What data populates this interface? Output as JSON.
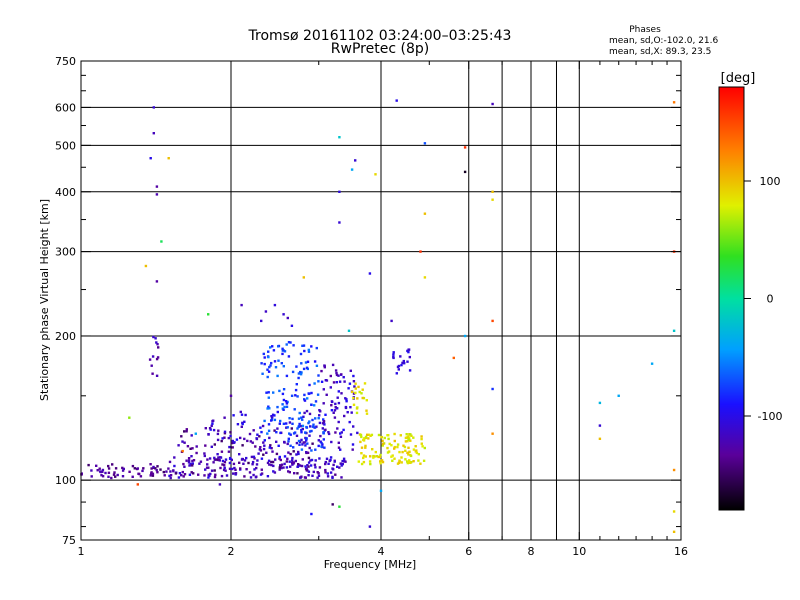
{
  "chart_data": {
    "type": "scatter",
    "title": "Tromsø 20161102 03:24:00–03:25:43",
    "subtitle": "RwPretec (8p)",
    "xlabel": "Frequency [MHz]",
    "ylabel": "Stationary phase Virtual Height [km]",
    "x_scale": "log",
    "y_scale": "log",
    "xlim": [
      1,
      16
    ],
    "ylim": [
      75,
      750
    ],
    "x_ticks": [
      1,
      2,
      4,
      6,
      8,
      10,
      16
    ],
    "y_ticks": [
      75,
      100,
      200,
      300,
      400,
      500,
      600,
      750
    ],
    "x_gridlines": [
      2,
      4,
      6,
      7,
      8,
      9,
      10
    ],
    "y_gridlines": [
      100,
      200,
      300,
      400,
      500,
      600
    ],
    "grid": true,
    "phases_box": {
      "title": "Phases",
      "line1": "mean, sd,O:-102.0, 21.6",
      "line2": "mean, sd,X: 89.3, 23.5"
    },
    "colorbar": {
      "unit": "[deg]",
      "range": [
        -180,
        180
      ],
      "ticks": [
        {
          "value": 100,
          "label": "100"
        },
        {
          "value": 0,
          "label": "0"
        },
        {
          "value": -100,
          "label": "-100"
        }
      ]
    },
    "bands": [
      {
        "f": [
          1.0,
          1.5
        ],
        "h": [
          101,
          108
        ],
        "n": 60,
        "phase": [
          -150,
          -120
        ]
      },
      {
        "f": [
          1.5,
          3.4
        ],
        "h": [
          101,
          112
        ],
        "n": 180,
        "phase": [
          -140,
          -100
        ]
      },
      {
        "f": [
          1.55,
          3.0
        ],
        "h": [
          103,
          130
        ],
        "n": 110,
        "phase": [
          -150,
          -110
        ]
      },
      {
        "f": [
          1.8,
          3.1
        ],
        "h": [
          110,
          140
        ],
        "n": 80,
        "phase": [
          -125,
          -90
        ]
      },
      {
        "f": [
          2.3,
          3.0
        ],
        "h": [
          125,
          195
        ],
        "n": 130,
        "phase": [
          -95,
          -55
        ]
      },
      {
        "f": [
          2.6,
          3.1
        ],
        "h": [
          115,
          135
        ],
        "n": 40,
        "phase": [
          -85,
          -60
        ]
      },
      {
        "f": [
          3.0,
          3.6
        ],
        "h": [
          115,
          170
        ],
        "n": 60,
        "phase": [
          -130,
          -90
        ]
      },
      {
        "f": [
          3.6,
          4.9
        ],
        "h": [
          108,
          125
        ],
        "n": 120,
        "phase": [
          70,
          100
        ]
      },
      {
        "f": [
          3.5,
          3.75
        ],
        "h": [
          135,
          160
        ],
        "n": 20,
        "phase": [
          70,
          100
        ]
      },
      {
        "f": [
          3.0,
          3.3
        ],
        "h": [
          120,
          175
        ],
        "n": 30,
        "phase": [
          -135,
          -110
        ]
      },
      {
        "f": [
          4.2,
          4.6
        ],
        "h": [
          165,
          190
        ],
        "n": 20,
        "phase": [
          -115,
          -95
        ]
      },
      {
        "f": [
          1.37,
          1.43
        ],
        "h": [
          160,
          200
        ],
        "n": 12,
        "phase": [
          -140,
          -110
        ]
      }
    ],
    "points": [
      [
        1.4,
        600,
        -110
      ],
      [
        1.4,
        530,
        -120
      ],
      [
        1.38,
        470,
        -100
      ],
      [
        1.42,
        410,
        -130
      ],
      [
        1.42,
        395,
        -125
      ],
      [
        1.42,
        260,
        -130
      ],
      [
        1.45,
        315,
        20
      ],
      [
        1.5,
        470,
        100
      ],
      [
        1.35,
        280,
        100
      ],
      [
        1.8,
        222,
        30
      ],
      [
        2.1,
        232,
        -120
      ],
      [
        2.3,
        215,
        -110
      ],
      [
        2.35,
        225,
        -115
      ],
      [
        2.45,
        232,
        -105
      ],
      [
        2.55,
        222,
        -110
      ],
      [
        2.6,
        218,
        -120
      ],
      [
        2.65,
        210,
        -100
      ],
      [
        2.8,
        265,
        100
      ],
      [
        3.3,
        400,
        -105
      ],
      [
        3.3,
        345,
        -110
      ],
      [
        3.3,
        520,
        -20
      ],
      [
        3.55,
        465,
        -110
      ],
      [
        3.5,
        445,
        -40
      ],
      [
        3.9,
        435,
        90
      ],
      [
        4.3,
        620,
        -100
      ],
      [
        4.9,
        505,
        -70
      ],
      [
        4.9,
        360,
        100
      ],
      [
        4.9,
        265,
        90
      ],
      [
        4.2,
        215,
        -115
      ],
      [
        5.9,
        495,
        160
      ],
      [
        5.9,
        440,
        -170
      ],
      [
        6.7,
        610,
        -120
      ],
      [
        6.7,
        400,
        100
      ],
      [
        6.7,
        385,
        90
      ],
      [
        6.7,
        215,
        150
      ],
      [
        6.7,
        155,
        -80
      ],
      [
        6.7,
        125,
        120
      ],
      [
        5.9,
        200,
        -40
      ],
      [
        5.6,
        180,
        140
      ],
      [
        4.8,
        300,
        160
      ],
      [
        11,
        145,
        -30
      ],
      [
        11,
        130,
        -110
      ],
      [
        11,
        122,
        100
      ],
      [
        12,
        150,
        -40
      ],
      [
        14,
        175,
        -40
      ],
      [
        15.5,
        615,
        130
      ],
      [
        15.5,
        300,
        160
      ],
      [
        15.5,
        205,
        -20
      ],
      [
        15.5,
        105,
        120
      ],
      [
        15.5,
        86,
        90
      ],
      [
        15.5,
        78,
        100
      ],
      [
        3.2,
        89,
        -150
      ],
      [
        2.9,
        85,
        -90
      ],
      [
        3.3,
        88,
        30
      ],
      [
        3.8,
        80,
        -110
      ],
      [
        4.0,
        95,
        -40
      ],
      [
        3.8,
        270,
        -100
      ],
      [
        3.45,
        205,
        -20
      ],
      [
        1.6,
        115,
        130
      ],
      [
        1.7,
        125,
        -40
      ],
      [
        1.3,
        98,
        150
      ],
      [
        1.25,
        135,
        60
      ],
      [
        1.9,
        98,
        -120
      ],
      [
        2.0,
        150,
        -130
      ]
    ]
  }
}
